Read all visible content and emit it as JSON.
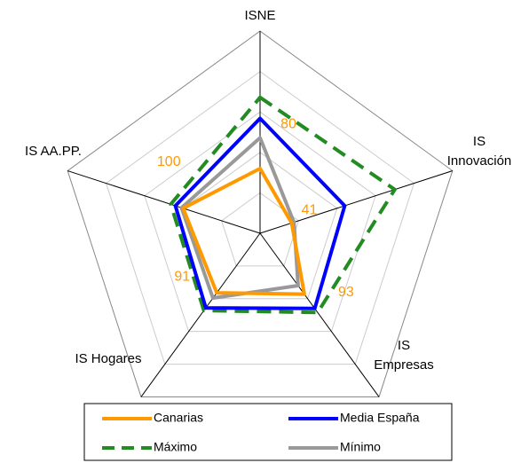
{
  "chart_data": {
    "type": "radar",
    "categories": [
      "ISNE",
      "IS Innovación",
      "IS Empresas",
      "IS Hogares",
      "IS AA.PP."
    ],
    "ylim": [
      0,
      250
    ],
    "yticks": [
      0,
      50,
      100,
      150,
      200,
      250
    ],
    "grid": true,
    "series": [
      {
        "name": "Canarias",
        "color": "#ff9900",
        "values": [
          80,
          41,
          93,
          91,
          100
        ],
        "data_labels": true
      },
      {
        "name": "Media España",
        "color": "#0000ff",
        "values": [
          142,
          110,
          115,
          114,
          110
        ]
      },
      {
        "name": "Máximo",
        "color": "#228b22",
        "dashed": true,
        "values": [
          168,
          175,
          121,
          118,
          116
        ]
      },
      {
        "name": "Mínimo",
        "color": "#999999",
        "values": [
          118,
          44,
          80,
          99,
          102
        ]
      }
    ]
  }
}
